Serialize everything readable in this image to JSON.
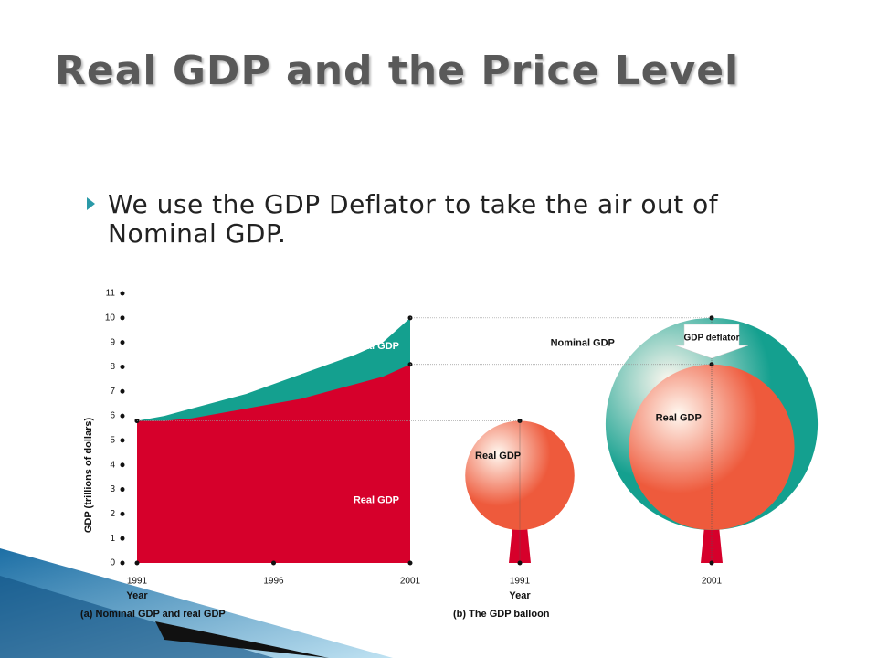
{
  "title": "Real GDP and the Price Level",
  "bullet": "We use the GDP Deflator to take the air out of Nominal GDP.",
  "chart_data": [
    {
      "type": "area",
      "title": "(a) Nominal GDP and real GDP",
      "xlabel": "Year",
      "ylabel": "GDP (trillions of dollars)",
      "x": [
        1991,
        1992,
        1993,
        1994,
        1995,
        1996,
        1997,
        1998,
        1999,
        2000,
        2001
      ],
      "xlim": [
        1991,
        2001
      ],
      "xticks": [
        1991,
        1996,
        2001
      ],
      "ylim": [
        0,
        11
      ],
      "yticks": [
        0,
        1,
        2,
        3,
        4,
        5,
        6,
        7,
        8,
        9,
        10,
        11
      ],
      "series": [
        {
          "name": "Nominal GDP",
          "color": "#14a08f",
          "values": [
            5.8,
            6.0,
            6.3,
            6.6,
            6.9,
            7.3,
            7.7,
            8.1,
            8.5,
            9.0,
            10.0
          ]
        },
        {
          "name": "Real GDP",
          "color": "#d6002b",
          "values": [
            5.8,
            5.8,
            5.9,
            6.1,
            6.3,
            6.5,
            6.7,
            7.0,
            7.3,
            7.6,
            8.1
          ]
        }
      ]
    },
    {
      "type": "balloon",
      "title": "(b) The GDP balloon",
      "xlabel": "Year",
      "categories": [
        "1991",
        "2001"
      ],
      "ylim": [
        0,
        11
      ],
      "annotation": "GDP deflator",
      "series": [
        {
          "name": "Nominal GDP",
          "color": "#14a08f",
          "values": [
            null,
            10.0
          ]
        },
        {
          "name": "Real GDP",
          "color": "#ee5a3c",
          "values": [
            5.8,
            8.1
          ]
        }
      ]
    }
  ]
}
